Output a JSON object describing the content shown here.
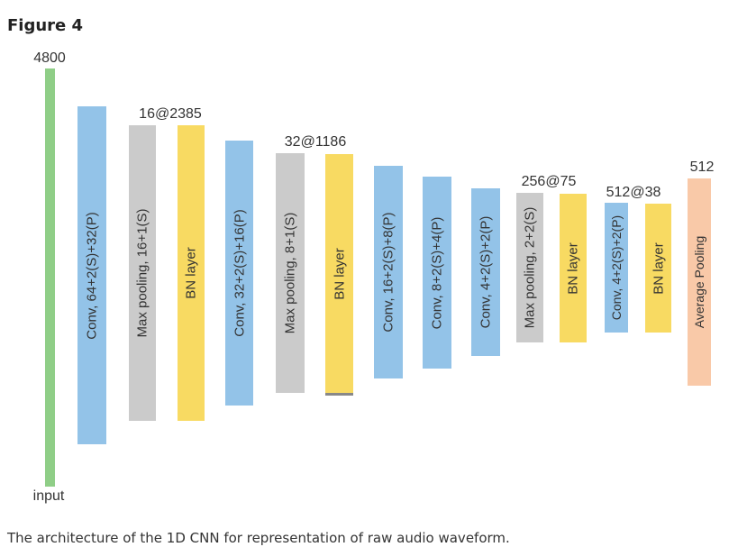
{
  "figure_title": "Figure 4",
  "caption": "The architecture of the 1D CNN for representation of raw audio waveform.",
  "colors": {
    "input": "#8fce87",
    "conv": "#93c3e8",
    "pool": "#cbcbcb",
    "bn": "#f8da62",
    "avg": "#f9c9a8"
  },
  "layers": [
    {
      "type": "input",
      "text": ""
    },
    {
      "type": "conv",
      "text": "Conv, 64+2(S)+32(P)"
    },
    {
      "type": "pool",
      "text": "Max pooling, 16+1(S)"
    },
    {
      "type": "bn",
      "text": "BN layer"
    },
    {
      "type": "conv",
      "text": "Conv, 32+2(S)+16(P)"
    },
    {
      "type": "pool",
      "text": "Max pooling, 8+1(S)"
    },
    {
      "type": "bn",
      "text": "BN layer"
    },
    {
      "type": "conv",
      "text": "Conv, 16+2(S)+8(P)"
    },
    {
      "type": "conv",
      "text": "Conv, 8+2(S)+4(P)"
    },
    {
      "type": "conv",
      "text": "Conv, 4+2(S)+2(P)"
    },
    {
      "type": "pool",
      "text": "Max pooling, 2+2(S)"
    },
    {
      "type": "bn",
      "text": "BN layer"
    },
    {
      "type": "conv",
      "text": "Conv, 4+2(S)+2(P)"
    },
    {
      "type": "bn",
      "text": "BN layer"
    },
    {
      "type": "avg",
      "text": "Average Pooling"
    }
  ],
  "dims": {
    "input": "4800",
    "d1": "16@2385",
    "d2": "32@1186",
    "d3": "256@75",
    "d4": "512@38",
    "out": "512"
  },
  "input_label": "input"
}
